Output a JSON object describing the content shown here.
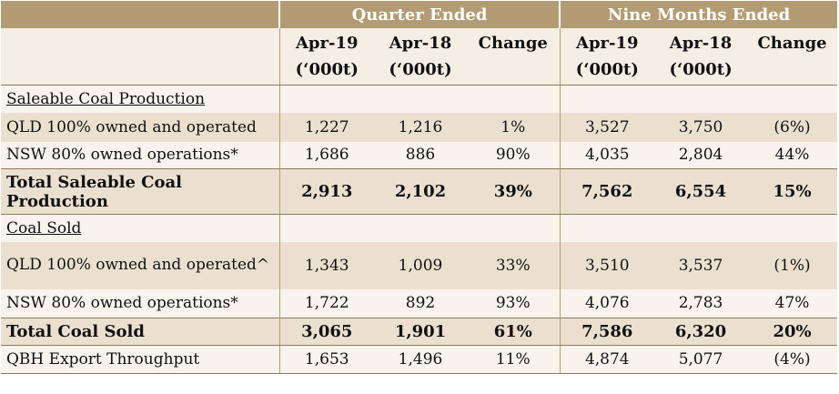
{
  "header": {
    "group_quarter": "Quarter Ended",
    "group_nine": "Nine Months Ended",
    "cols": [
      {
        "line1": "Apr-19",
        "line2": "(‘000t)"
      },
      {
        "line1": "Apr-18",
        "line2": "(‘000t)"
      },
      {
        "line1": "Change",
        "line2": ""
      },
      {
        "line1": "Apr-19",
        "line2": "(‘000t)"
      },
      {
        "line1": "Apr-18",
        "line2": "(‘000t)"
      },
      {
        "line1": "Change",
        "line2": ""
      }
    ]
  },
  "rows": [
    {
      "label": "Saleable Coal Production",
      "values": [
        "",
        "",
        "",
        "",
        "",
        ""
      ]
    },
    {
      "label": "QLD 100% owned and operated",
      "values": [
        "1,227",
        "1,216",
        "1%",
        "3,527",
        "3,750",
        "(6%)"
      ]
    },
    {
      "label": "NSW  80% owned operations*",
      "values": [
        "1,686",
        "886",
        "90%",
        "4,035",
        "2,804",
        "44%"
      ]
    },
    {
      "label": "Total Saleable Coal Production",
      "values": [
        "2,913",
        "2,102",
        "39%",
        "7,562",
        "6,554",
        "15%"
      ]
    },
    {
      "label": "Coal Sold",
      "values": [
        "",
        "",
        "",
        "",
        "",
        ""
      ]
    },
    {
      "label": "QLD 100% owned and operated^",
      "values": [
        "1,343",
        "1,009",
        "33%",
        "3,510",
        "3,537",
        "(1%)"
      ]
    },
    {
      "label": "NSW  80% owned operations*",
      "values": [
        "1,722",
        "892",
        "93%",
        "4,076",
        "2,783",
        "47%"
      ]
    },
    {
      "label": "Total Coal Sold",
      "values": [
        "3,065",
        "1,901",
        "61%",
        "7,586",
        "6,320",
        "20%"
      ]
    },
    {
      "label": "QBH Export Throughput",
      "values": [
        "1,653",
        "1,496",
        "11%",
        "4,874",
        "5,077",
        "(4%)"
      ]
    }
  ]
}
